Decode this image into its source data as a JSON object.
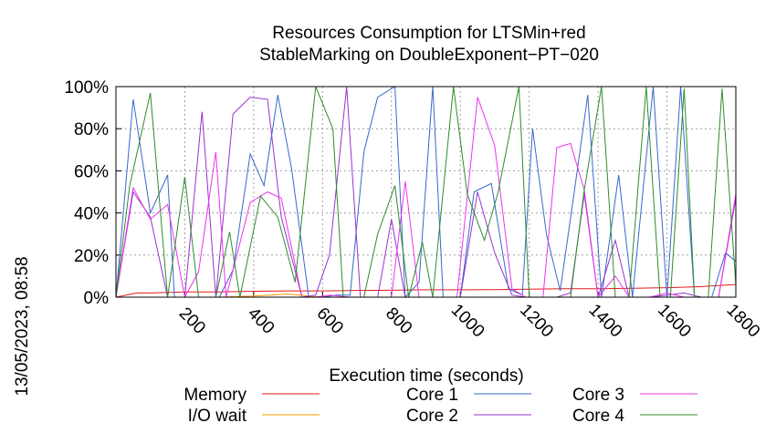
{
  "chart_data": {
    "type": "line",
    "title_line1": "Resources Consumption for LTSMin+red",
    "title_line2": "StableMarking on DoubleExponent−PT−020",
    "xlabel": "Execution time (seconds)",
    "side_label": "13/05/2023, 08:58",
    "xlim": [
      0,
      1800
    ],
    "ylim": [
      0,
      100
    ],
    "x_ticks": [
      {
        "value": 200,
        "label": "200"
      },
      {
        "value": 400,
        "label": "400"
      },
      {
        "value": 600,
        "label": "600"
      },
      {
        "value": 800,
        "label": "800"
      },
      {
        "value": 1000,
        "label": "1000"
      },
      {
        "value": 1200,
        "label": "1200"
      },
      {
        "value": 1400,
        "label": "1400"
      },
      {
        "value": 1600,
        "label": "1600"
      },
      {
        "value": 1800,
        "label": "1800"
      }
    ],
    "y_ticks": [
      {
        "value": 0,
        "label": "0%"
      },
      {
        "value": 20,
        "label": "20%"
      },
      {
        "value": 40,
        "label": "40%"
      },
      {
        "value": 60,
        "label": "60%"
      },
      {
        "value": 80,
        "label": "80%"
      },
      {
        "value": 100,
        "label": "100%"
      }
    ],
    "grid": true,
    "legend_position": "bottom",
    "series": [
      {
        "name": "Memory",
        "color": "#e41a1c",
        "points": [
          [
            0,
            0
          ],
          [
            60,
            2
          ],
          [
            100,
            2
          ],
          [
            200,
            2.5
          ],
          [
            300,
            2.5
          ],
          [
            400,
            2.8
          ],
          [
            500,
            3
          ],
          [
            600,
            3
          ],
          [
            700,
            3.2
          ],
          [
            800,
            3.3
          ],
          [
            900,
            3.5
          ],
          [
            1000,
            3.5
          ],
          [
            1100,
            3.6
          ],
          [
            1200,
            3.8
          ],
          [
            1300,
            4
          ],
          [
            1400,
            4
          ],
          [
            1500,
            4.2
          ],
          [
            1600,
            4.5
          ],
          [
            1700,
            5
          ],
          [
            1800,
            6
          ]
        ]
      },
      {
        "name": "I/O wait",
        "color": "#ff9900",
        "points": [
          [
            0,
            0
          ],
          [
            100,
            0
          ],
          [
            200,
            0
          ],
          [
            300,
            0
          ],
          [
            400,
            0.5
          ],
          [
            500,
            1.5
          ],
          [
            560,
            0.5
          ],
          [
            600,
            0
          ],
          [
            700,
            0
          ],
          [
            800,
            0
          ],
          [
            900,
            0
          ],
          [
            1000,
            0
          ],
          [
            1100,
            0
          ],
          [
            1200,
            0
          ],
          [
            1300,
            0
          ],
          [
            1400,
            0
          ],
          [
            1500,
            0
          ],
          [
            1600,
            0
          ],
          [
            1700,
            0
          ],
          [
            1800,
            0
          ]
        ]
      },
      {
        "name": "Core 1",
        "color": "#3a66cc",
        "points": [
          [
            0,
            0
          ],
          [
            50,
            94
          ],
          [
            100,
            40
          ],
          [
            150,
            58
          ],
          [
            170,
            0
          ],
          [
            200,
            0
          ],
          [
            300,
            0
          ],
          [
            340,
            13
          ],
          [
            390,
            68
          ],
          [
            430,
            53
          ],
          [
            470,
            96
          ],
          [
            510,
            61
          ],
          [
            560,
            0
          ],
          [
            600,
            0
          ],
          [
            640,
            1
          ],
          [
            680,
            1
          ],
          [
            720,
            69
          ],
          [
            760,
            95
          ],
          [
            810,
            100
          ],
          [
            840,
            0
          ],
          [
            880,
            7
          ],
          [
            920,
            100
          ],
          [
            950,
            0
          ],
          [
            1000,
            0
          ],
          [
            1040,
            50
          ],
          [
            1090,
            54
          ],
          [
            1140,
            4
          ],
          [
            1180,
            1
          ],
          [
            1210,
            80
          ],
          [
            1250,
            30
          ],
          [
            1290,
            3
          ],
          [
            1330,
            49
          ],
          [
            1370,
            96
          ],
          [
            1410,
            0
          ],
          [
            1460,
            58
          ],
          [
            1500,
            0
          ],
          [
            1560,
            100
          ],
          [
            1600,
            0
          ],
          [
            1640,
            100
          ],
          [
            1680,
            0
          ],
          [
            1730,
            0
          ],
          [
            1770,
            21
          ],
          [
            1800,
            17
          ]
        ]
      },
      {
        "name": "Core 2",
        "color": "#9932cc",
        "points": [
          [
            0,
            0
          ],
          [
            50,
            50
          ],
          [
            100,
            38
          ],
          [
            150,
            0
          ],
          [
            200,
            0
          ],
          [
            250,
            88
          ],
          [
            290,
            0
          ],
          [
            340,
            87
          ],
          [
            390,
            95
          ],
          [
            440,
            94
          ],
          [
            480,
            38
          ],
          [
            540,
            0
          ],
          [
            580,
            1
          ],
          [
            620,
            20
          ],
          [
            670,
            100
          ],
          [
            710,
            0
          ],
          [
            760,
            0
          ],
          [
            800,
            37
          ],
          [
            840,
            0
          ],
          [
            890,
            0
          ],
          [
            940,
            0
          ],
          [
            1000,
            0
          ],
          [
            1050,
            50
          ],
          [
            1100,
            21
          ],
          [
            1150,
            1
          ],
          [
            1190,
            0
          ],
          [
            1240,
            0
          ],
          [
            1280,
            0
          ],
          [
            1320,
            2
          ],
          [
            1360,
            49
          ],
          [
            1400,
            0
          ],
          [
            1450,
            27
          ],
          [
            1490,
            0
          ],
          [
            1550,
            0
          ],
          [
            1600,
            1
          ],
          [
            1650,
            2
          ],
          [
            1700,
            0
          ],
          [
            1750,
            0
          ],
          [
            1800,
            47
          ]
        ]
      },
      {
        "name": "Core 3",
        "color": "#ee33ee",
        "points": [
          [
            0,
            0
          ],
          [
            50,
            52
          ],
          [
            100,
            37
          ],
          [
            150,
            44
          ],
          [
            200,
            0
          ],
          [
            240,
            12
          ],
          [
            290,
            69
          ],
          [
            320,
            0
          ],
          [
            390,
            45
          ],
          [
            440,
            50
          ],
          [
            480,
            47
          ],
          [
            540,
            0
          ],
          [
            580,
            0
          ],
          [
            620,
            1
          ],
          [
            680,
            0
          ],
          [
            720,
            0
          ],
          [
            760,
            0
          ],
          [
            800,
            0
          ],
          [
            840,
            55
          ],
          [
            880,
            0
          ],
          [
            940,
            0
          ],
          [
            990,
            0
          ],
          [
            1050,
            95
          ],
          [
            1100,
            72
          ],
          [
            1150,
            4
          ],
          [
            1190,
            0
          ],
          [
            1240,
            0
          ],
          [
            1280,
            71
          ],
          [
            1320,
            73
          ],
          [
            1360,
            51
          ],
          [
            1400,
            0
          ],
          [
            1450,
            10
          ],
          [
            1490,
            0
          ],
          [
            1550,
            0
          ],
          [
            1600,
            2
          ],
          [
            1650,
            0
          ],
          [
            1700,
            0
          ],
          [
            1750,
            0
          ],
          [
            1800,
            49
          ]
        ]
      },
      {
        "name": "Core 4",
        "color": "#2e8b2e",
        "points": [
          [
            0,
            0
          ],
          [
            40,
            53
          ],
          [
            100,
            97
          ],
          [
            150,
            0
          ],
          [
            200,
            57
          ],
          [
            240,
            0
          ],
          [
            290,
            0
          ],
          [
            330,
            31
          ],
          [
            360,
            0
          ],
          [
            420,
            48
          ],
          [
            470,
            38
          ],
          [
            520,
            7
          ],
          [
            580,
            100
          ],
          [
            630,
            80
          ],
          [
            660,
            0
          ],
          [
            720,
            0
          ],
          [
            760,
            30
          ],
          [
            810,
            53
          ],
          [
            850,
            0
          ],
          [
            890,
            26
          ],
          [
            920,
            0
          ],
          [
            980,
            100
          ],
          [
            1020,
            49
          ],
          [
            1070,
            27
          ],
          [
            1110,
            50
          ],
          [
            1170,
            100
          ],
          [
            1200,
            0
          ],
          [
            1270,
            0
          ],
          [
            1320,
            0
          ],
          [
            1360,
            51
          ],
          [
            1410,
            100
          ],
          [
            1450,
            0
          ],
          [
            1490,
            0
          ],
          [
            1540,
            100
          ],
          [
            1580,
            0
          ],
          [
            1610,
            0
          ],
          [
            1650,
            99
          ],
          [
            1680,
            0
          ],
          [
            1720,
            0
          ],
          [
            1760,
            99
          ],
          [
            1800,
            6
          ]
        ]
      }
    ]
  }
}
